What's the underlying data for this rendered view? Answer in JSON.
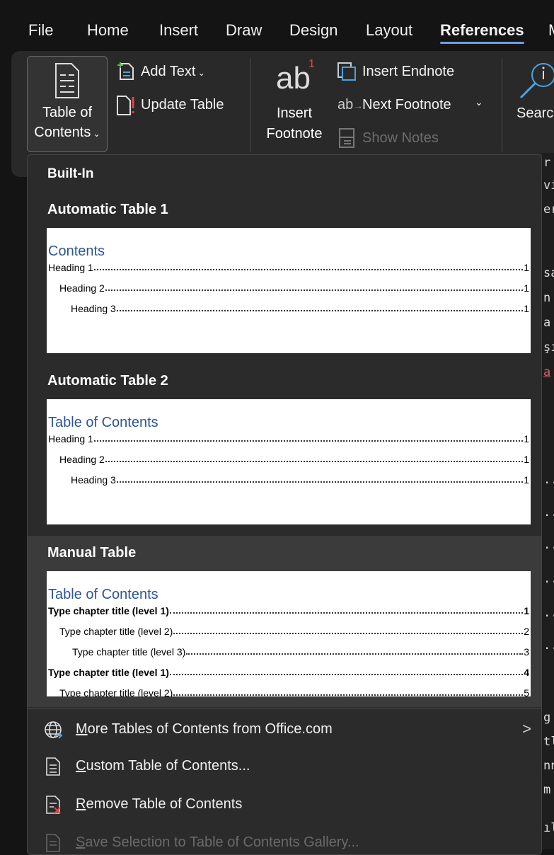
{
  "tabs": [
    {
      "label": "File"
    },
    {
      "label": "Home"
    },
    {
      "label": "Insert"
    },
    {
      "label": "Draw"
    },
    {
      "label": "Design"
    },
    {
      "label": "Layout"
    },
    {
      "label": "References",
      "active": true
    },
    {
      "label": "M"
    }
  ],
  "ribbon": {
    "toc_line1": "Table of",
    "toc_line2": "Contents",
    "add_text": "Add Text",
    "update_table": "Update Table",
    "insert_footnote_1": "Insert",
    "insert_footnote_2": "Footnote",
    "footnote_glyph": "ab",
    "footnote_sup": "1",
    "insert_endnote": "Insert Endnote",
    "next_footnote": "Next Footnote",
    "show_notes": "Show Notes",
    "search": "Search"
  },
  "menu": {
    "built_in": "Built-In",
    "sections": [
      {
        "title": "Automatic Table 1",
        "preview_title": "Contents",
        "lines": [
          {
            "text": "Heading 1",
            "page": "1",
            "bold": false
          },
          {
            "text": "Heading 2",
            "page": "1",
            "bold": false
          },
          {
            "text": "Heading 3",
            "page": "1",
            "bold": false
          }
        ]
      },
      {
        "title": "Automatic Table 2",
        "preview_title": "Table of Contents",
        "lines": [
          {
            "text": "Heading 1",
            "page": "1",
            "bold": false
          },
          {
            "text": "Heading 2",
            "page": "1",
            "bold": false
          },
          {
            "text": "Heading 3",
            "page": "1",
            "bold": false
          }
        ]
      },
      {
        "title": "Manual Table",
        "preview_title": "Table of Contents",
        "lines": [
          {
            "text": "Type chapter title (level 1)",
            "page": "1",
            "bold": true
          },
          {
            "text": "Type chapter title (level 2)",
            "page": "2",
            "bold": false
          },
          {
            "text": "Type chapter title (level 3)",
            "page": "3",
            "bold": false
          },
          {
            "text": "Type chapter title (level 1)",
            "page": "4",
            "bold": true
          },
          {
            "text": "Type chapter title (level 2)",
            "page": "5",
            "bold": false
          }
        ]
      }
    ],
    "items": [
      {
        "key": "M",
        "rest": "ore Tables of Contents from Office.com",
        "icon": "globe-icon",
        "enabled": true
      },
      {
        "key": "C",
        "rest": "ustom Table of Contents...",
        "icon": "document-icon",
        "enabled": true
      },
      {
        "key": "R",
        "rest": "emove Table of Contents",
        "icon": "remove-document-icon",
        "enabled": true
      },
      {
        "key": "S",
        "rest": "ave Selection to Table of Contents Gallery...",
        "icon": "save-gallery-icon",
        "enabled": false
      }
    ]
  },
  "document_fragments": [
    "r",
    "vir",
    "er",
    "sa",
    "n",
    "a",
    "şıl",
    "a",
    "...",
    "...",
    "...",
    "...",
    "...",
    "...",
    "g",
    "tl",
    "nn",
    "m",
    "ılü"
  ],
  "colors": {
    "accent": "#6f9ce8",
    "preview_title": "#2f5597",
    "link_red": "#e0606a"
  }
}
